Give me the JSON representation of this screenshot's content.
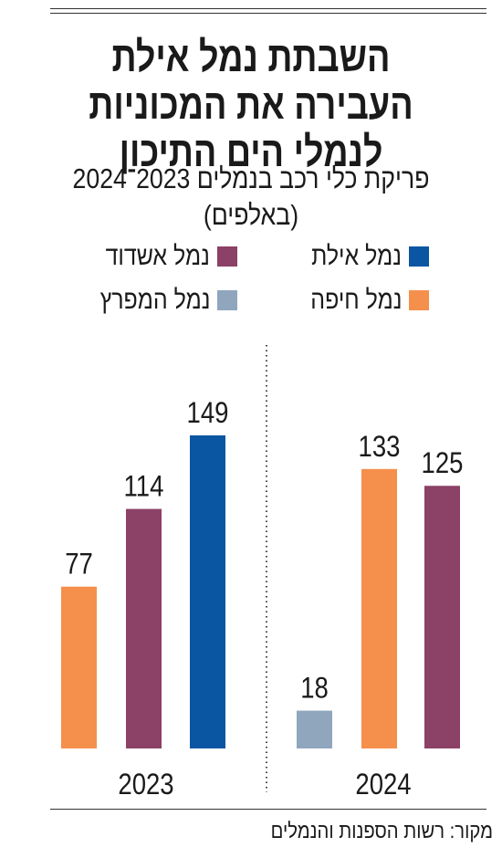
{
  "header": {
    "title_lines": [
      "השבתת נמל אילת",
      "העבירה את המכוניות",
      "לנמלי הים התיכון"
    ],
    "subtitle_lines": [
      "פריקת כלי רכב בנמלים 2023־2024",
      "(באלפים)"
    ]
  },
  "legend": [
    {
      "label": "נמל אילת",
      "color": "#0a56a2"
    },
    {
      "label": "נמל אשדוד",
      "color": "#8c4166"
    },
    {
      "label": "נמל חיפה",
      "color": "#f58f4c"
    },
    {
      "label": "נמל המפרץ",
      "color": "#8fa6bd"
    }
  ],
  "source": "מקור: רשות הספנות והנמלים",
  "chart_data": {
    "type": "bar",
    "groups": [
      {
        "label": "2023",
        "bars": [
          {
            "series": "נמל חיפה",
            "value": 77,
            "color": "#f58f4c"
          },
          {
            "series": "נמל אשדוד",
            "value": 114,
            "color": "#8c4166"
          },
          {
            "series": "נמל אילת",
            "value": 149,
            "color": "#0a56a2"
          }
        ]
      },
      {
        "label": "2024",
        "bars": [
          {
            "series": "נמל המפרץ",
            "value": 18,
            "color": "#8fa6bd"
          },
          {
            "series": "נמל חיפה",
            "value": 133,
            "color": "#f58f4c"
          },
          {
            "series": "נמל אשדוד",
            "value": 125,
            "color": "#8c4166"
          }
        ]
      }
    ],
    "ylim": [
      0,
      149
    ],
    "grid": false,
    "legend_position": "top"
  }
}
